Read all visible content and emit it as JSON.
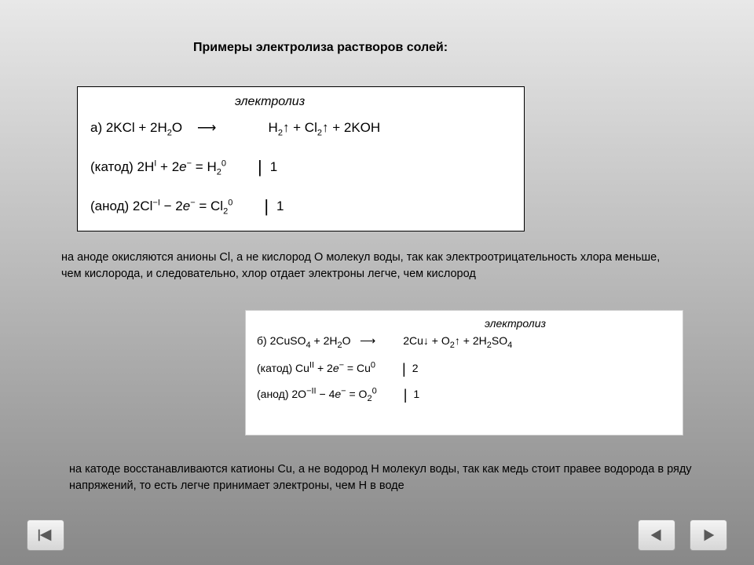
{
  "title": "Примеры электролиза растворов солей:",
  "box1": {
    "label": "электролиз",
    "equation_html": "а) 2KCl + 2H<span class='sub'>2</span>O&nbsp;&nbsp;&nbsp;&nbsp;⟶&nbsp;&nbsp;&nbsp;&nbsp;&nbsp;&nbsp;&nbsp;&nbsp;&nbsp;&nbsp;&nbsp;&nbsp;&nbsp;&nbsp;H<span class='sub'>2</span>↑ + Cl<span class='sub'>2</span>↑ + 2KOH",
    "cathode_html": "(катод) 2H<span class='sup'>I</span> + 2<i>e</i><span class='sup'>−</span> = H<span class='sub'>2</span><span class='sup'>0</span><span class='bar'>|</span>1",
    "anode_html": "(анод) 2Cl<span class='sup'>−I</span> − 2<i>e</i><span class='sup'>−</span> = Cl<span class='sub'>2</span><span class='sup'>0</span><span class='bar'>|</span>1"
  },
  "para1": "на аноде окисляются анионы Cl, а не кислород O молекул воды, так как электроотрицательность хлора меньше, чем кислорода, и следовательно, хлор отдает электроны легче, чем кислород",
  "box2": {
    "label": "электролиз",
    "equation_html": "б) 2CuSO<span class='sub'>4</span> + 2H<span class='sub'>2</span>O&nbsp;&nbsp;&nbsp;⟶&nbsp;&nbsp;&nbsp;&nbsp;&nbsp;&nbsp;&nbsp;&nbsp;&nbsp;2Cu↓ + O<span class='sub'>2</span>↑ + 2H<span class='sub'>2</span>SO<span class='sub'>4</span>",
    "cathode_html": "(катод) Cu<span class='sup'>II</span> + 2<i>e</i><span class='sup'>−</span> = Cu<span class='sup'>0</span><span class='bar2'>|</span>2",
    "anode_html": "(анод) 2O<span class='sup'>−II</span> − 4<i>e</i><span class='sup'>−</span> = O<span class='sub'>2</span><span class='sup'>0</span><span class='bar2'>|</span>1"
  },
  "para2": "на катоде восстанавливаются катионы Cu, а не водород H молекул воды, так как медь стоит правее водорода в ряду напряжений, то есть легче принимает электроны, чем H в воде",
  "colors": {
    "bg_top": "#e8e8e8",
    "bg_bottom": "#888888",
    "box_bg": "#ffffff",
    "text": "#000000",
    "btn_border": "#9a9a9a",
    "arrow_fill": "#5a5a5a"
  }
}
